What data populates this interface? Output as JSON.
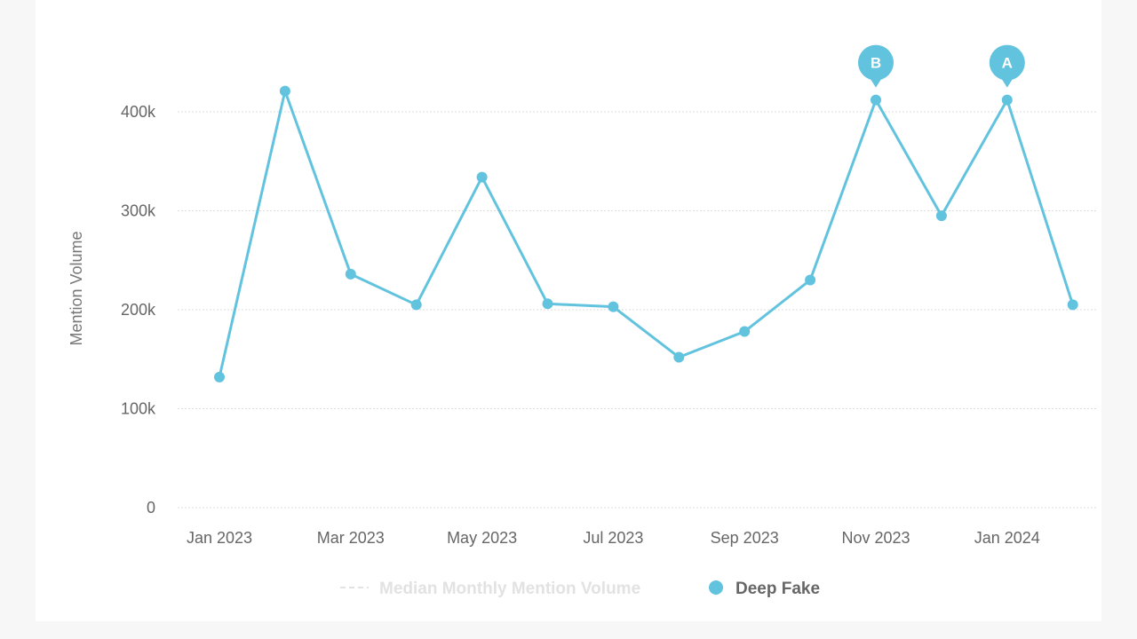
{
  "chart_data": {
    "type": "line",
    "title": "",
    "xlabel": "",
    "ylabel": "Mention Volume",
    "ylim": [
      0,
      420000
    ],
    "yticks": [
      0,
      100000,
      200000,
      300000,
      400000
    ],
    "ytick_labels": [
      "0",
      "100k",
      "200k",
      "300k",
      "400k"
    ],
    "x": [
      "Jan 2023",
      "Feb 2023",
      "Mar 2023",
      "Apr 2023",
      "May 2023",
      "Jun 2023",
      "Jul 2023",
      "Aug 2023",
      "Sep 2023",
      "Oct 2023",
      "Nov 2023",
      "Dec 2023",
      "Jan 2024",
      "Feb 2024"
    ],
    "xtick_labels": [
      "Jan 2023",
      "Mar 2023",
      "May 2023",
      "Jul 2023",
      "Sep 2023",
      "Nov 2023",
      "Jan 2024"
    ],
    "grid": true,
    "legend_placement": "bottom-center",
    "series": [
      {
        "name": "Deep Fake",
        "color": "#62c3df",
        "values": [
          132000,
          421000,
          236000,
          205000,
          334000,
          206000,
          203000,
          152000,
          178000,
          230000,
          412000,
          295000,
          412000,
          205000
        ]
      }
    ],
    "legend": [
      {
        "name": "Median Monthly Mention Volume",
        "style": "dashed",
        "color": "#e2e2e2"
      },
      {
        "name": "Deep Fake",
        "style": "dot",
        "color": "#62c3df"
      }
    ],
    "annotations": [
      {
        "label": "B",
        "x": "Nov 2023"
      },
      {
        "label": "A",
        "x": "Jan 2024"
      }
    ]
  }
}
